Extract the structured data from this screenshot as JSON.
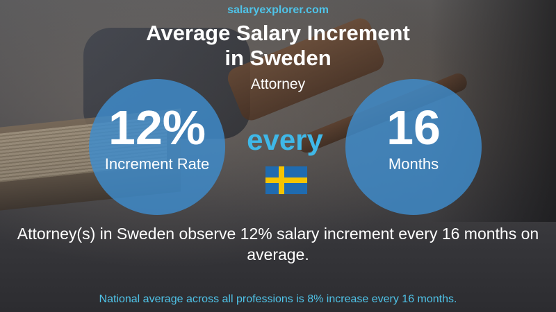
{
  "site": {
    "name_part1": "salary",
    "name_part2": "explorer",
    "name_part3": ".com"
  },
  "header": {
    "title_line1": "Average Salary Increment",
    "title_line2": "in Sweden",
    "subtitle": "Attorney"
  },
  "stats": {
    "increment_value": "12%",
    "increment_label": "Increment Rate",
    "connector": "every",
    "period_value": "16",
    "period_label": "Months"
  },
  "flag": {
    "country": "Sweden",
    "blue": "#1f6bb0",
    "yellow": "#f5c400",
    "icon": "sweden-flag-icon"
  },
  "description": "Attorney(s) in Sweden observe 12% salary increment every 16 months on average.",
  "footer": {
    "national_average": "National average across all professions is 8% increase every 16 months."
  },
  "colors": {
    "accent": "#4fc3e8",
    "circle": "#3e8ccd",
    "text": "#ffffff"
  }
}
